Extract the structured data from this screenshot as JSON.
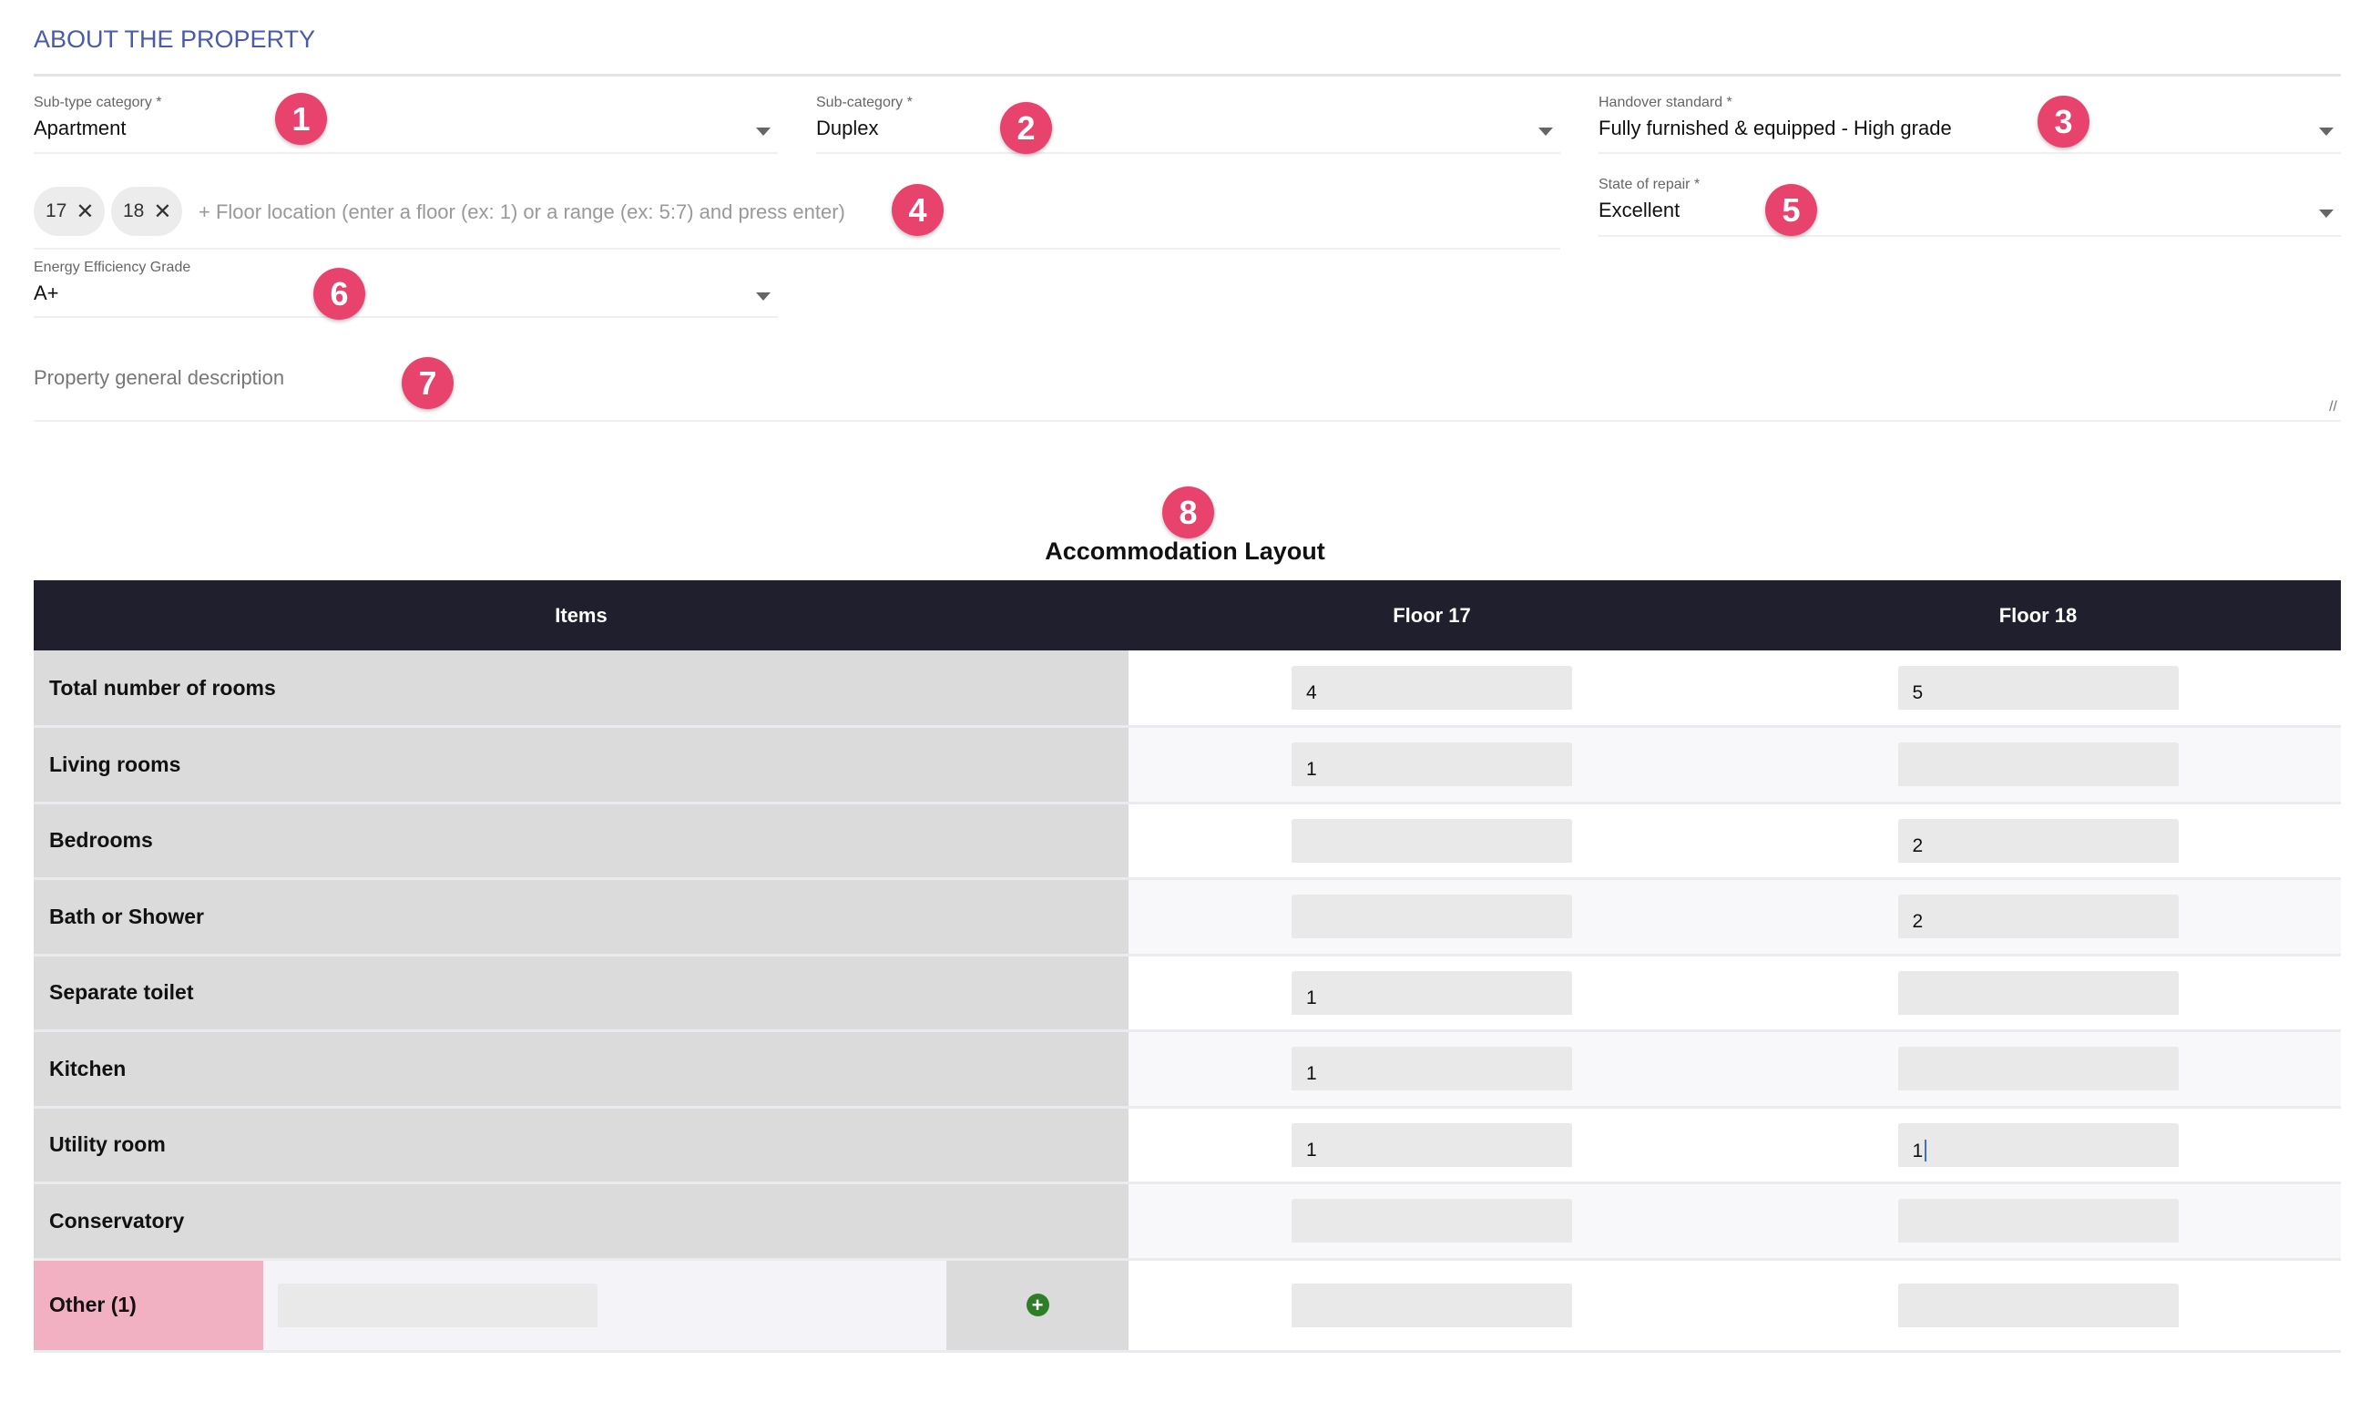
{
  "section_title": "ABOUT THE PROPERTY",
  "fields": {
    "subtype": {
      "label": "Sub-type category *",
      "value": "Apartment"
    },
    "subcategory": {
      "label": "Sub-category *",
      "value": "Duplex"
    },
    "handover": {
      "label": "Handover standard *",
      "value": "Fully furnished & equipped - High grade"
    },
    "floors": {
      "chips": [
        "17",
        "18"
      ],
      "placeholder": "+ Floor location (enter a floor (ex: 1) or a range (ex: 5:7) and press enter)"
    },
    "repair": {
      "label": "State of repair *",
      "value": "Excellent"
    },
    "energy": {
      "label": "Energy Efficiency Grade",
      "value": "A+"
    },
    "description": {
      "placeholder": "Property general description"
    }
  },
  "badges": [
    "1",
    "2",
    "3",
    "4",
    "5",
    "6",
    "7",
    "8"
  ],
  "badge_color": "#e8436c",
  "table": {
    "title": "Accommodation Layout",
    "headers": [
      "Items",
      "Floor 17",
      "Floor 18"
    ],
    "rows": [
      {
        "item": "Total number of rooms",
        "f17": "4",
        "f18": "5"
      },
      {
        "item": "Living rooms",
        "f17": "1",
        "f18": ""
      },
      {
        "item": "Bedrooms",
        "f17": "",
        "f18": "2"
      },
      {
        "item": "Bath or Shower",
        "f17": "",
        "f18": "2"
      },
      {
        "item": "Separate toilet",
        "f17": "1",
        "f18": ""
      },
      {
        "item": "Kitchen",
        "f17": "1",
        "f18": ""
      },
      {
        "item": "Utility room",
        "f17": "1",
        "f18": "1"
      },
      {
        "item": "Conservatory",
        "f17": "",
        "f18": ""
      }
    ],
    "other": {
      "label": "Other (1)",
      "name": "",
      "f17": "",
      "f18": ""
    }
  }
}
